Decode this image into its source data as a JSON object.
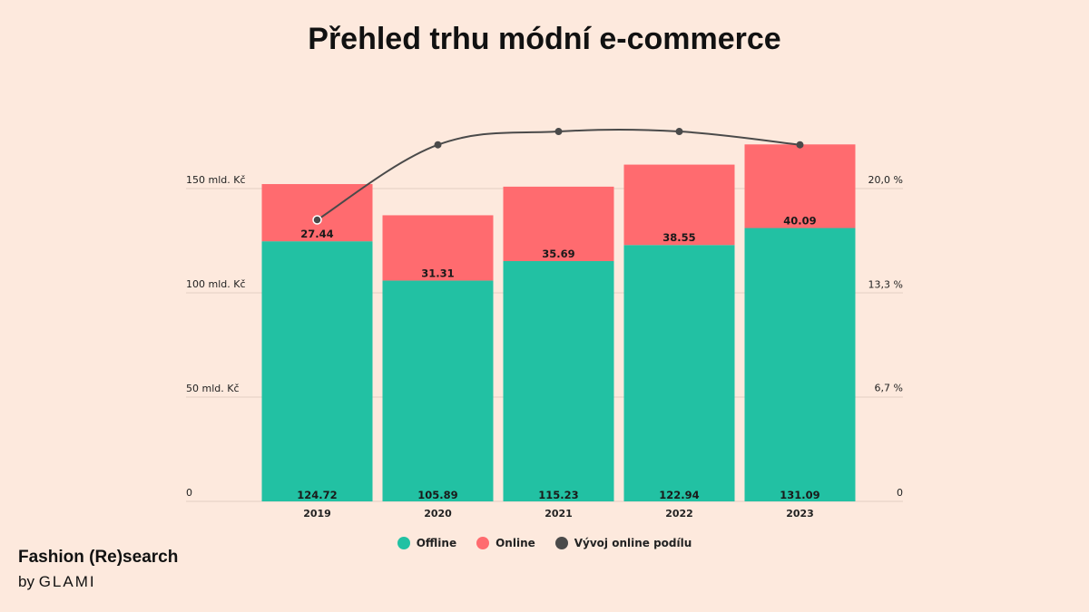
{
  "title": "Přehled trhu módní e-commerce",
  "brand": {
    "name": "Fashion (Re)search",
    "by": "by",
    "company": "GLAMI"
  },
  "colors": {
    "offline": "#22c1a3",
    "online": "#ff6b6f",
    "trend": "#4a4a4a",
    "grid": "#e2cfc4"
  },
  "chart_data": {
    "type": "bar",
    "stacked": true,
    "categories": [
      "2019",
      "2020",
      "2021",
      "2022",
      "2023"
    ],
    "series": [
      {
        "name": "Offline",
        "values": [
          124.72,
          105.89,
          115.23,
          122.94,
          131.09
        ]
      },
      {
        "name": "Online",
        "values": [
          27.44,
          31.31,
          35.69,
          38.55,
          40.09
        ]
      }
    ],
    "line_series": {
      "name": "Vývoj online podílu",
      "values": [
        18.0,
        22.8,
        23.65,
        23.65,
        22.8
      ],
      "axis": "right"
    },
    "left_axis": {
      "ticks": [
        0,
        50,
        100,
        150
      ],
      "tick_labels": [
        "0",
        "50 mld. Kč",
        "100 mld. Kč",
        "150 mld. Kč"
      ],
      "ylim": [
        0,
        150
      ]
    },
    "right_axis": {
      "ticks": [
        0,
        6.7,
        13.3,
        20.0
      ],
      "tick_labels": [
        "0",
        "6,7 %",
        "13,3 %",
        "20,0 %"
      ],
      "ylim": [
        0,
        20
      ]
    },
    "legend_position": "bottom-center",
    "grid": true
  }
}
